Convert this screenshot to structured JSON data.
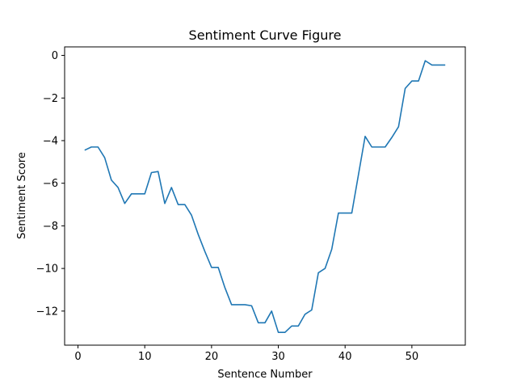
{
  "chart_data": {
    "type": "line",
    "title": "Sentiment Curve Figure",
    "xlabel": "Sentence Number",
    "ylabel": "Sentiment Score",
    "xlim": [
      -2,
      58
    ],
    "ylim": [
      -13.6,
      0.4
    ],
    "xticks": [
      0,
      10,
      20,
      30,
      40,
      50
    ],
    "yticks": [
      0,
      -2,
      -4,
      -6,
      -8,
      -10,
      -12
    ],
    "ytick_labels": [
      "0",
      "−2",
      "−4",
      "−6",
      "−8",
      "−10",
      "−12"
    ],
    "grid": false,
    "line_color": "#1f77b4",
    "series": [
      {
        "x": [
          1,
          2,
          3,
          4,
          5,
          6,
          7,
          8,
          9,
          10,
          11,
          12,
          13,
          14,
          15,
          16,
          17,
          18,
          19,
          20,
          21,
          22,
          23,
          24,
          25,
          26,
          27,
          28,
          29,
          30,
          31,
          32,
          33,
          34,
          35,
          36,
          37,
          38,
          39,
          40,
          41,
          42,
          43,
          44,
          45,
          46,
          47,
          48,
          49,
          50,
          51,
          52,
          53,
          54,
          55
        ],
        "values": [
          -4.45,
          -4.3,
          -4.3,
          -4.8,
          -5.85,
          -6.2,
          -6.95,
          -6.5,
          -6.5,
          -6.5,
          -5.5,
          -5.45,
          -6.95,
          -6.2,
          -7.0,
          -7.0,
          -7.5,
          -8.4,
          -9.2,
          -9.95,
          -9.95,
          -10.9,
          -11.7,
          -11.7,
          -11.7,
          -11.75,
          -12.55,
          -12.55,
          -12.0,
          -13.0,
          -13.0,
          -12.7,
          -12.7,
          -12.15,
          -11.95,
          -10.2,
          -10.0,
          -9.1,
          -7.4,
          -7.4,
          -7.4,
          -5.6,
          -3.8,
          -4.3,
          -4.3,
          -4.3,
          -3.85,
          -3.35,
          -1.55,
          -1.2,
          -1.2,
          -0.25,
          -0.45,
          -0.45,
          -0.45
        ]
      }
    ]
  }
}
